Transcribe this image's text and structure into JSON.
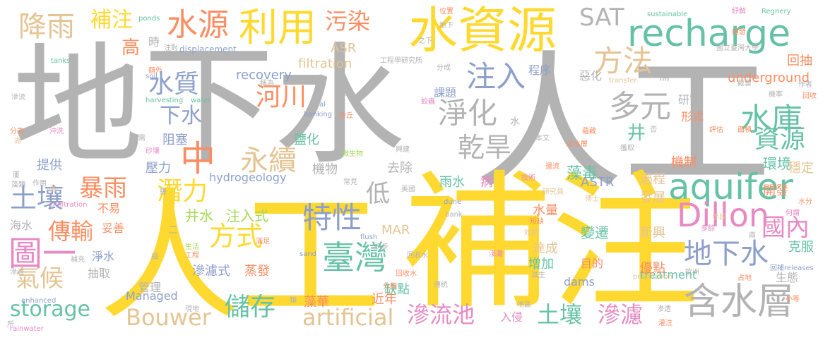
{
  "words": [
    "地下水",
    "人工",
    "補注",
    "水資源",
    "recharge",
    "利用",
    "水源",
    "降雨",
    "補注",
    "污染",
    "SAT",
    "方法",
    "注入",
    "水庫",
    "多元",
    "淨化",
    "乾旱",
    "水質",
    "河川",
    "下水",
    "中",
    "永續",
    "aquifer",
    "資源",
    "環境",
    "機制",
    "土壤",
    "暴雨",
    "潛力",
    "特性",
    "低",
    "Dillon",
    "國內",
    "地下水",
    "傳輸",
    "方式",
    "圖一",
    "臺灣",
    "氣候",
    "storage",
    "儲存",
    "Bouwer",
    "artificial",
    "滲流池",
    "土壤",
    "滲濾",
    "含水層",
    "recovery",
    "hydrogeology",
    "filtration",
    "ASR",
    "ASTR",
    "underground",
    "MAR",
    "treatment",
    "Managed",
    "dams",
    "高",
    "井",
    "井水",
    "注入式",
    "不易",
    "提供",
    "壓力",
    "阻塞",
    "鹽化",
    "機物",
    "去除",
    "雨水",
    "藻毒",
    "過程",
    "發展",
    "開發",
    "穩定",
    "回抽",
    "研究",
    "形式",
    "變遷",
    "新興",
    "克服",
    "目的",
    "優點",
    "增加",
    "水量",
    "達成",
    "蒸發",
    "滲濾式",
    "缺點",
    "近年",
    "藻華",
    "入侵",
    "淨水",
    "抽取",
    "管理",
    "海水",
    "妥善",
    "生態",
    "工程學研究所",
    "國立臺灣大學",
    "sustainable",
    "Regnery",
    "ponds",
    "tanks",
    "soil",
    "water",
    "harvesting",
    "banking",
    "displacement",
    "transfer",
    "percolation",
    "releases",
    "sand",
    "flush",
    "dune",
    "bank",
    "site",
    "enhanced",
    "rainwater",
    "infiltration",
    "作者",
    "截留",
    "面積",
    "評估",
    "水分",
    "何謂",
    "多餘",
    "手段",
    "兩",
    "回收",
    "回收水",
    "含水層",
    "博士",
    "研究員",
    "技術",
    "還流",
    "病",
    "常見",
    "美國",
    "初步",
    "回收水",
    "傳統",
    "分類",
    "現地",
    "類",
    "工程",
    "生活",
    "補充",
    "細",
    "額外",
    "稱為",
    "沙丘",
    "置換",
    "蛟蟲",
    "位置",
    "地下",
    "之下",
    "分成",
    "紓解",
    "揮發",
    "所",
    "滲流",
    "分為",
    "湖",
    "沖洗",
    "屢",
    "藻類",
    "浴",
    "作用",
    "補",
    "時",
    "注對",
    "課題",
    "程序",
    "惡化",
    "機率",
    "水",
    "需",
    "蘊藏",
    "否",
    "獲取",
    "本文",
    "微生物",
    "興建",
    "砂壤",
    "小等",
    "渗透",
    "地區",
    "灌注",
    "占地",
    "歐洲",
    "滋生",
    "淺灘",
    "短缺",
    "效能",
    "滲流",
    "al",
    "二",
    "鹽",
    "滿足",
    "回補"
  ]
}
